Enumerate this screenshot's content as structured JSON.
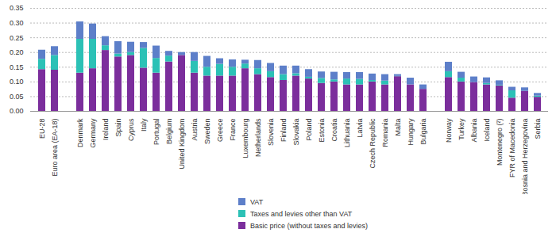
{
  "chart_data": {
    "type": "bar",
    "stacked": true,
    "grid": true,
    "categories": [
      "EU-28",
      "Euro area (EA-18)",
      null,
      "Denmark",
      "Germany",
      "Ireland",
      "Spain",
      "Cyprus",
      "Italy",
      "Portugal",
      "Belgium",
      "United Kingdom",
      "Austria",
      "Sweden",
      "Greece",
      "France",
      "Luxembourg",
      "Netherlands",
      "Slovenia",
      "Finland",
      "Slovakia",
      "Poland",
      "Estonia",
      "Croatia",
      "Lithuania",
      "Latvia",
      "Czech Republic",
      "Romania",
      "Malta",
      "Hungary",
      "Bulgaria",
      null,
      "Norway",
      "Turkey",
      "Albania",
      "Iceland",
      "Montenegro (²)",
      "FYR of Macedonia",
      "Bosnia and Herzegovina",
      "Serbia"
    ],
    "series": [
      {
        "name": "VAT",
        "color": "#5d7fc9",
        "values": [
          0.031,
          0.03,
          null,
          0.059,
          0.052,
          0.031,
          0.042,
          0.035,
          0.02,
          0.042,
          0.016,
          0.01,
          0.03,
          0.037,
          0.019,
          0.025,
          0.013,
          0.028,
          0.028,
          0.029,
          0.026,
          0.026,
          0.022,
          0.026,
          0.022,
          0.023,
          0.022,
          0.022,
          0.006,
          0.023,
          0.015,
          null,
          0.032,
          0.02,
          0.019,
          0.019,
          0.015,
          0.012,
          0.012,
          0.009
        ]
      },
      {
        "name": "Taxes and levies other than VAT",
        "color": "#2cc1b6",
        "values": [
          0.035,
          0.05,
          null,
          0.115,
          0.1,
          0.016,
          0.01,
          0.01,
          0.067,
          0.05,
          0.02,
          0.0,
          0.04,
          0.03,
          0.04,
          0.03,
          0.016,
          0.02,
          0.02,
          0.02,
          0.008,
          0.006,
          0.017,
          0.007,
          0.02,
          0.019,
          0.005,
          0.013,
          0.001,
          0.0,
          0.0,
          null,
          0.02,
          0.013,
          0.0,
          0.005,
          0.002,
          0.025,
          0.0,
          0.004
        ]
      },
      {
        "name": "Basic price (without taxes and levies)",
        "color": "#7b2e9c",
        "values": [
          0.142,
          0.14,
          null,
          0.13,
          0.145,
          0.207,
          0.185,
          0.19,
          0.147,
          0.13,
          0.168,
          0.19,
          0.13,
          0.12,
          0.12,
          0.12,
          0.145,
          0.125,
          0.115,
          0.105,
          0.12,
          0.11,
          0.095,
          0.1,
          0.09,
          0.09,
          0.1,
          0.09,
          0.118,
          0.09,
          0.075,
          null,
          0.115,
          0.1,
          0.098,
          0.09,
          0.087,
          0.045,
          0.068,
          0.048
        ]
      }
    ],
    "ylim": [
      0,
      0.35
    ],
    "yticks": [
      {
        "value": 0,
        "label": "0.00"
      },
      {
        "value": 0.05,
        "label": "0.05"
      },
      {
        "value": 0.1,
        "label": "0.10"
      },
      {
        "value": 0.15,
        "label": "0.15"
      },
      {
        "value": 0.2,
        "label": "0.20"
      },
      {
        "value": 0.25,
        "label": "0.25"
      },
      {
        "value": 0.3,
        "label": "0.30"
      },
      {
        "value": 0.35,
        "label": "0.35"
      }
    ]
  }
}
